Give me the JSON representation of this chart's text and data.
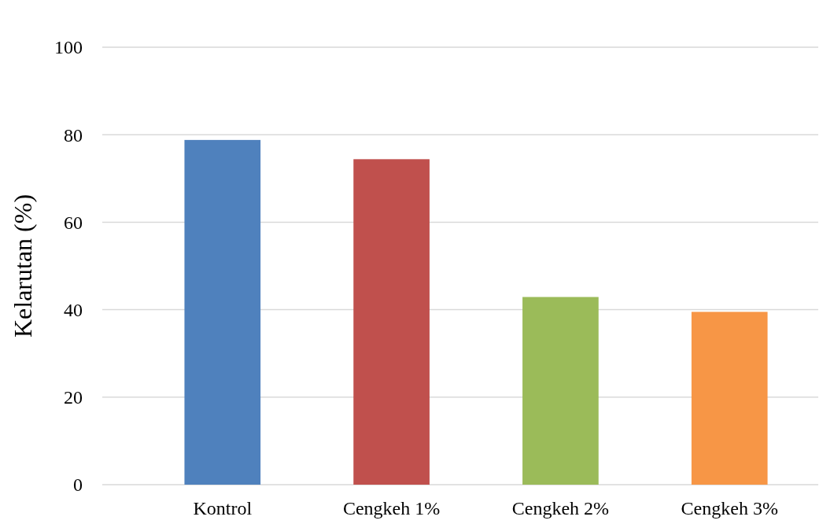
{
  "chart_data": {
    "type": "bar",
    "ylabel": "Kelarutan (%)",
    "categories": [
      "Kontrol",
      "Cengkeh 1%",
      "Cengkeh 2%",
      "Cengkeh 3%"
    ],
    "values": [
      78.8,
      74.4,
      42.9,
      39.5
    ],
    "colors": [
      "#4f81bd",
      "#c0504d",
      "#9bbb59",
      "#f79646"
    ],
    "ylim": [
      0,
      100
    ],
    "yticks": [
      0,
      20,
      40,
      60,
      80,
      100
    ],
    "grid": "y"
  }
}
